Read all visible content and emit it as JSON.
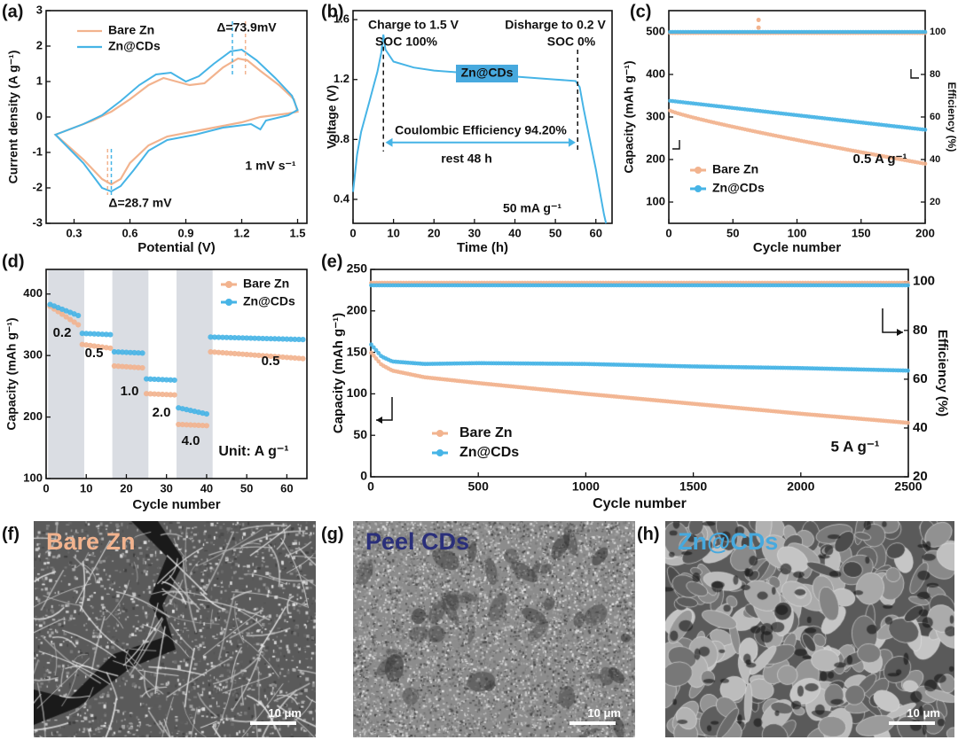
{
  "colors": {
    "bare": "#F2B38E",
    "cds": "#46B4E6",
    "cds_label_bg": "#47A9DE",
    "peel": "#2A2F7A",
    "text": "#111111"
  },
  "panel_letters": {
    "a": "(a)",
    "b": "(b)",
    "c": "(c)",
    "d": "(d)",
    "e": "(e)",
    "f": "(f)",
    "g": "(g)",
    "h": "(h)"
  },
  "chart_data": [
    {
      "id": "a",
      "type": "line",
      "xlabel": "Potential (V)",
      "ylabel": "Current density (A g⁻¹)",
      "xlim": [
        0.15,
        1.55
      ],
      "ylim": [
        -3,
        3
      ],
      "xticks": [
        "0.3",
        "0.6",
        "0.9",
        "1.2",
        "1.5"
      ],
      "xtick_values": [
        0.3,
        0.6,
        0.9,
        1.2,
        1.5
      ],
      "yticks": [
        "-3",
        "-2",
        "-1",
        "0",
        "1",
        "2",
        "3"
      ],
      "ytick_values": [
        -3,
        -2,
        -1,
        0,
        1,
        2,
        3
      ],
      "series": [
        {
          "name": "Bare Zn",
          "color": "#F2B38E",
          "points": [
            [
              0.2,
              -0.5
            ],
            [
              0.35,
              -1.2
            ],
            [
              0.45,
              -1.75
            ],
            [
              0.5,
              -1.9
            ],
            [
              0.55,
              -1.75
            ],
            [
              0.6,
              -1.3
            ],
            [
              0.7,
              -0.8
            ],
            [
              0.8,
              -0.55
            ],
            [
              0.95,
              -0.4
            ],
            [
              1.1,
              -0.25
            ],
            [
              1.2,
              -0.15
            ],
            [
              1.3,
              0.0
            ],
            [
              1.45,
              0.1
            ],
            [
              1.5,
              0.15
            ],
            [
              1.48,
              0.5
            ],
            [
              1.4,
              0.9
            ],
            [
              1.3,
              1.3
            ],
            [
              1.23,
              1.6
            ],
            [
              1.18,
              1.65
            ],
            [
              1.1,
              1.4
            ],
            [
              1.0,
              0.95
            ],
            [
              0.92,
              0.9
            ],
            [
              0.85,
              1.0
            ],
            [
              0.78,
              1.1
            ],
            [
              0.7,
              0.9
            ],
            [
              0.6,
              0.5
            ],
            [
              0.5,
              0.15
            ],
            [
              0.4,
              -0.1
            ],
            [
              0.3,
              -0.3
            ],
            [
              0.2,
              -0.5
            ]
          ]
        },
        {
          "name": "Zn@CDs",
          "color": "#46B4E6",
          "points": [
            [
              0.2,
              -0.5
            ],
            [
              0.35,
              -1.3
            ],
            [
              0.45,
              -2.0
            ],
            [
              0.5,
              -2.1
            ],
            [
              0.55,
              -1.95
            ],
            [
              0.62,
              -1.5
            ],
            [
              0.7,
              -0.95
            ],
            [
              0.8,
              -0.65
            ],
            [
              0.95,
              -0.5
            ],
            [
              1.1,
              -0.3
            ],
            [
              1.25,
              -0.2
            ],
            [
              1.3,
              -0.35
            ],
            [
              1.33,
              -0.1
            ],
            [
              1.45,
              0.05
            ],
            [
              1.5,
              0.2
            ],
            [
              1.47,
              0.6
            ],
            [
              1.38,
              1.1
            ],
            [
              1.28,
              1.6
            ],
            [
              1.2,
              1.9
            ],
            [
              1.14,
              1.85
            ],
            [
              1.05,
              1.5
            ],
            [
              0.97,
              1.15
            ],
            [
              0.9,
              1.0
            ],
            [
              0.82,
              1.25
            ],
            [
              0.74,
              1.2
            ],
            [
              0.65,
              0.9
            ],
            [
              0.55,
              0.45
            ],
            [
              0.45,
              0.05
            ],
            [
              0.35,
              -0.2
            ],
            [
              0.2,
              -0.5
            ]
          ]
        }
      ],
      "annotations": [
        {
          "text": "Δ=73.9mV"
        },
        {
          "text": "Δ=28.7 mV"
        },
        {
          "text": "1 mV s⁻¹"
        }
      ]
    },
    {
      "id": "b",
      "type": "line",
      "xlabel": "Time (h)",
      "ylabel": "Voltage (V)",
      "xlim": [
        0,
        64
      ],
      "ylim": [
        0.24,
        1.66
      ],
      "xticks": [
        "0",
        "10",
        "20",
        "30",
        "40",
        "50",
        "60"
      ],
      "xtick_values": [
        0,
        10,
        20,
        30,
        40,
        50,
        60
      ],
      "yticks": [
        "0.4",
        "0.8",
        "1.2",
        "1.6"
      ],
      "ytick_values": [
        0.4,
        0.8,
        1.2,
        1.6
      ],
      "series": [
        {
          "name": "Zn@CDs",
          "color": "#46B4E6",
          "points": [
            [
              0,
              0.45
            ],
            [
              1,
              0.7
            ],
            [
              2,
              0.85
            ],
            [
              3,
              0.95
            ],
            [
              4,
              1.05
            ],
            [
              5,
              1.15
            ],
            [
              6,
              1.25
            ],
            [
              7,
              1.38
            ],
            [
              7.5,
              1.5
            ],
            [
              8,
              1.4
            ],
            [
              10,
              1.32
            ],
            [
              15,
              1.28
            ],
            [
              20,
              1.26
            ],
            [
              30,
              1.24
            ],
            [
              40,
              1.22
            ],
            [
              50,
              1.2
            ],
            [
              55,
              1.19
            ],
            [
              56,
              1.15
            ],
            [
              57,
              1.0
            ],
            [
              58.5,
              0.8
            ],
            [
              60,
              0.6
            ],
            [
              61,
              0.45
            ],
            [
              62,
              0.3
            ],
            [
              62.5,
              0.24
            ]
          ]
        }
      ],
      "annotations": [
        {
          "text": "Charge to 1.5 V"
        },
        {
          "text": "SOC 100%"
        },
        {
          "text": "Disharge to 0.2 V"
        },
        {
          "text": "SOC 0%"
        },
        {
          "text": "Zn@CDs"
        },
        {
          "text": "Coulombic Efficiency 94.20%"
        },
        {
          "text": "rest 48 h"
        },
        {
          "text": "50 mA g⁻¹"
        }
      ]
    },
    {
      "id": "c",
      "type": "scatter",
      "xlabel": "Cycle number",
      "ylabel": "Capacity (mAh g⁻¹)",
      "y2label": "Efficiency (%)",
      "xlim": [
        0,
        200
      ],
      "ylim": [
        50,
        550
      ],
      "y2lim": [
        10,
        110
      ],
      "xticks": [
        "0",
        "50",
        "100",
        "150",
        "200"
      ],
      "xtick_values": [
        0,
        50,
        100,
        150,
        200
      ],
      "yticks": [
        "100",
        "200",
        "300",
        "400",
        "500"
      ],
      "ytick_values": [
        100,
        200,
        300,
        400,
        500
      ],
      "y2ticks": [
        "20",
        "40",
        "60",
        "80",
        "100"
      ],
      "y2tick_values": [
        20,
        40,
        60,
        80,
        100
      ],
      "series": [
        {
          "name": "Bare Zn",
          "color": "#F2B38E",
          "axis": "left",
          "start": 315,
          "end": 190,
          "n": 100
        },
        {
          "name": "Zn@CDs",
          "color": "#46B4E6",
          "axis": "left",
          "start": 338,
          "end": 270,
          "n": 100
        },
        {
          "name": "Bare Zn efficiency",
          "color": "#F2B38E",
          "axis": "right",
          "start": 99.5,
          "end": 99.5,
          "n": 100
        },
        {
          "name": "Zn@CDs efficiency",
          "color": "#46B4E6",
          "axis": "right",
          "start": 100,
          "end": 100,
          "n": 100
        }
      ],
      "annotations": [
        {
          "text": "0.5 A g⁻¹"
        }
      ]
    },
    {
      "id": "d",
      "type": "scatter",
      "xlabel": "Cycle number",
      "ylabel": "Capacity (mAh g⁻¹)",
      "xlim": [
        0,
        65
      ],
      "ylim": [
        100,
        440
      ],
      "xticks": [
        "0",
        "10",
        "20",
        "30",
        "40",
        "50",
        "60"
      ],
      "xtick_values": [
        0,
        10,
        20,
        30,
        40,
        50,
        60
      ],
      "yticks": [
        "100",
        "200",
        "300",
        "400"
      ],
      "ytick_values": [
        100,
        200,
        300,
        400
      ],
      "shaded_ranges": [
        [
          1,
          9
        ],
        [
          17,
          25
        ],
        [
          33,
          41
        ]
      ],
      "rate_labels": [
        "0.2",
        "0.5",
        "1.0",
        "2.0",
        "4.0",
        "0.5"
      ],
      "series": [
        {
          "name": "Bare Zn",
          "color": "#F2B38E",
          "segments": [
            [
              1,
              8,
              380,
              350
            ],
            [
              9,
              16,
              318,
              312
            ],
            [
              17,
              24,
              283,
              280
            ],
            [
              25,
              32,
              238,
              236
            ],
            [
              33,
              40,
              188,
              186
            ],
            [
              41,
              64,
              306,
              295
            ]
          ]
        },
        {
          "name": "Zn@CDs",
          "color": "#46B4E6",
          "segments": [
            [
              1,
              8,
              383,
              365
            ],
            [
              9,
              16,
              336,
              334
            ],
            [
              17,
              24,
              306,
              304
            ],
            [
              25,
              32,
              262,
              260
            ],
            [
              33,
              40,
              215,
              205
            ],
            [
              41,
              64,
              330,
              326
            ]
          ]
        }
      ],
      "annotations": [
        {
          "text": "Unit: A g⁻¹"
        }
      ]
    },
    {
      "id": "e",
      "type": "scatter",
      "xlabel": "Cycle number",
      "ylabel": "Capacity (mAh g⁻¹)",
      "y2label": "Efficiency (%)",
      "xlim": [
        0,
        2500
      ],
      "ylim": [
        0,
        250
      ],
      "y2lim": [
        20,
        105
      ],
      "xticks": [
        "0",
        "500",
        "1000",
        "1500",
        "2000",
        "2500"
      ],
      "xtick_values": [
        0,
        500,
        1000,
        1500,
        2000,
        2500
      ],
      "yticks": [
        "0",
        "50",
        "100",
        "150",
        "200",
        "250"
      ],
      "ytick_values": [
        0,
        50,
        100,
        150,
        200,
        250
      ],
      "y2ticks": [
        "20",
        "40",
        "60",
        "80",
        "100"
      ],
      "y2tick_values": [
        20,
        40,
        60,
        80,
        100
      ],
      "series": [
        {
          "name": "Bare Zn",
          "color": "#F2B38E",
          "axis": "left",
          "points": [
            [
              0,
              150
            ],
            [
              50,
              135
            ],
            [
              100,
              128
            ],
            [
              250,
              120
            ],
            [
              500,
              113
            ],
            [
              1000,
              100
            ],
            [
              1500,
              88
            ],
            [
              2000,
              76
            ],
            [
              2500,
              65
            ]
          ]
        },
        {
          "name": "Zn@CDs",
          "color": "#46B4E6",
          "axis": "left",
          "points": [
            [
              0,
              160
            ],
            [
              50,
              145
            ],
            [
              100,
              139
            ],
            [
              250,
              136
            ],
            [
              500,
              137
            ],
            [
              1000,
              136
            ],
            [
              1500,
              133
            ],
            [
              2000,
              131
            ],
            [
              2500,
              128
            ]
          ]
        },
        {
          "name": "Bare Zn efficiency",
          "color": "#F2B38E",
          "axis": "right",
          "points": [
            [
              0,
              99.5
            ],
            [
              2500,
              99.5
            ]
          ]
        },
        {
          "name": "Zn@CDs efficiency",
          "color": "#46B4E6",
          "axis": "right",
          "points": [
            [
              0,
              98.5
            ],
            [
              2500,
              98.5
            ]
          ]
        }
      ],
      "annotations": [
        {
          "text": "5 A g⁻¹"
        }
      ]
    }
  ],
  "sem_images": [
    {
      "id": "f",
      "label": "Bare Zn",
      "label_color": "#F2B38E",
      "scale": "10 μm",
      "texture": "fibrous"
    },
    {
      "id": "g",
      "label": "Peel CDs",
      "label_color": "#2A2F7A",
      "scale": "10 μm",
      "texture": "fine"
    },
    {
      "id": "h",
      "label": "Zn@CDs",
      "label_color": "#47A9DE",
      "scale": "10 μm",
      "texture": "flaky"
    }
  ]
}
